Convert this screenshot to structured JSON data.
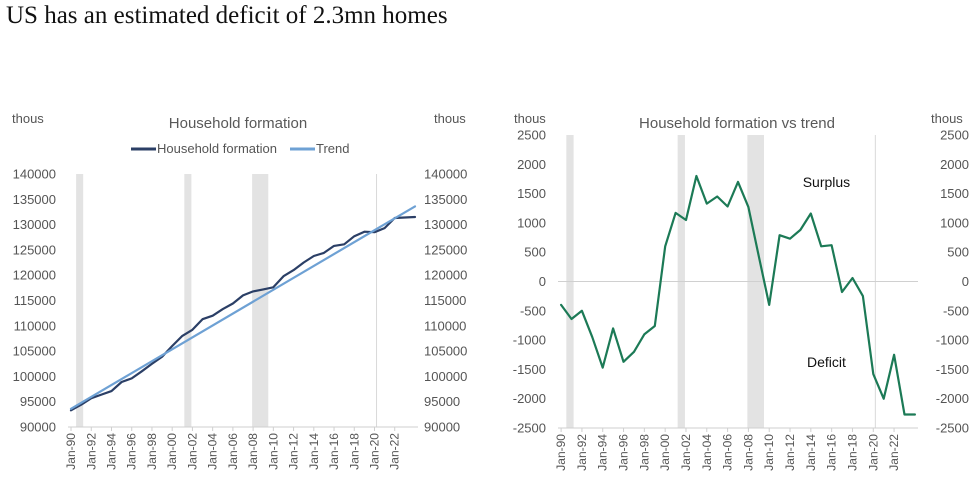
{
  "headline": "US has an estimated deficit of 2.3mn homes",
  "recession_color": "#e3e3e3",
  "chart_data": [
    {
      "type": "line",
      "title": "Household formation",
      "ylabel_left": "thous",
      "ylabel_right": "thous",
      "ylim": [
        90000,
        140000
      ],
      "yticks": [
        90000,
        95000,
        100000,
        105000,
        110000,
        115000,
        120000,
        125000,
        130000,
        135000,
        140000
      ],
      "xlim": [
        1989.7,
        2024.3
      ],
      "xtick_labels": [
        "Jan-90",
        "Jan-92",
        "Jan-94",
        "Jan-96",
        "Jan-98",
        "Jan-00",
        "Jan-02",
        "Jan-04",
        "Jan-06",
        "Jan-08",
        "Jan-10",
        "Jan-12",
        "Jan-14",
        "Jan-16",
        "Jan-18",
        "Jan-20",
        "Jan-22"
      ],
      "xtick_years": [
        1990,
        1992,
        1994,
        1996,
        1998,
        2000,
        2002,
        2004,
        2006,
        2008,
        2010,
        2012,
        2014,
        2016,
        2018,
        2020,
        2022
      ],
      "recessions": [
        [
          1990.5,
          1991.2
        ],
        [
          2001.2,
          2001.9
        ],
        [
          2007.9,
          2009.5
        ]
      ],
      "covid_line": 2020.2,
      "legend": "top-center",
      "series": [
        {
          "name": "Household formation",
          "color": "#2b3f66",
          "x": [
            1990,
            1991,
            1992,
            1993,
            1994,
            1995,
            1996,
            1997,
            1998,
            1999,
            2000,
            2001,
            2002,
            2003,
            2004,
            2005,
            2006,
            2007,
            2008,
            2009,
            2010,
            2011,
            2012,
            2013,
            2014,
            2015,
            2016,
            2017,
            2018,
            2019,
            2020,
            2021,
            2022,
            2023,
            2024
          ],
          "values": [
            93300,
            94400,
            95700,
            96400,
            97100,
            98900,
            99600,
            101000,
            102500,
            103900,
            106000,
            108000,
            109200,
            111300,
            112000,
            113300,
            114400,
            116000,
            116800,
            117200,
            117600,
            119800,
            121000,
            122500,
            123800,
            124400,
            125800,
            126100,
            127700,
            128600,
            128500,
            129300,
            131300,
            131400,
            131500
          ]
        },
        {
          "name": "Trend",
          "color": "#6ea1d4",
          "x": [
            1990,
            2024
          ],
          "values": [
            93600,
            133600
          ]
        }
      ]
    },
    {
      "type": "line",
      "title": "Household formation vs trend",
      "ylabel_left": "thous",
      "ylabel_right": "thous",
      "ylim": [
        -2500,
        2500
      ],
      "yticks": [
        -2500,
        -2000,
        -1500,
        -1000,
        -500,
        0,
        500,
        1000,
        1500,
        2000,
        2500
      ],
      "xlim": [
        1989.7,
        2024.3
      ],
      "xtick_labels": [
        "Jan-90",
        "Jan-92",
        "Jan-94",
        "Jan-96",
        "Jan-98",
        "Jan-00",
        "Jan-02",
        "Jan-04",
        "Jan-06",
        "Jan-08",
        "Jan-10",
        "Jan-12",
        "Jan-14",
        "Jan-16",
        "Jan-18",
        "Jan-20",
        "Jan-22"
      ],
      "xtick_years": [
        1990,
        1992,
        1994,
        1996,
        1998,
        2000,
        2002,
        2004,
        2006,
        2008,
        2010,
        2012,
        2014,
        2016,
        2018,
        2020,
        2022
      ],
      "recessions": [
        [
          1990.5,
          1991.2
        ],
        [
          2001.2,
          2001.9
        ],
        [
          2007.9,
          2009.5
        ]
      ],
      "covid_line": 2020.2,
      "annotations": [
        {
          "text": "Surplus",
          "x": 2015.5,
          "y": 1610
        },
        {
          "text": "Deficit",
          "x": 2015.5,
          "y": -1460
        }
      ],
      "series": [
        {
          "color": "#1c7a56",
          "x": [
            1990,
            1991,
            1992,
            1993,
            1994,
            1995,
            1996,
            1997,
            1998,
            1999,
            2000,
            2001,
            2002,
            2003,
            2004,
            2005,
            2006,
            2007,
            2008,
            2009,
            2010,
            2011,
            2012,
            2013,
            2014,
            2015,
            2016,
            2017,
            2018,
            2019,
            2020,
            2021,
            2022,
            2023,
            2024
          ],
          "values": [
            -400,
            -640,
            -500,
            -950,
            -1470,
            -800,
            -1370,
            -1200,
            -900,
            -760,
            600,
            1170,
            1050,
            1800,
            1330,
            1450,
            1280,
            1700,
            1270,
            430,
            -400,
            790,
            730,
            880,
            1160,
            600,
            620,
            -180,
            60,
            -250,
            -1580,
            -2000,
            -1250,
            -2270,
            -2270
          ]
        }
      ]
    }
  ]
}
